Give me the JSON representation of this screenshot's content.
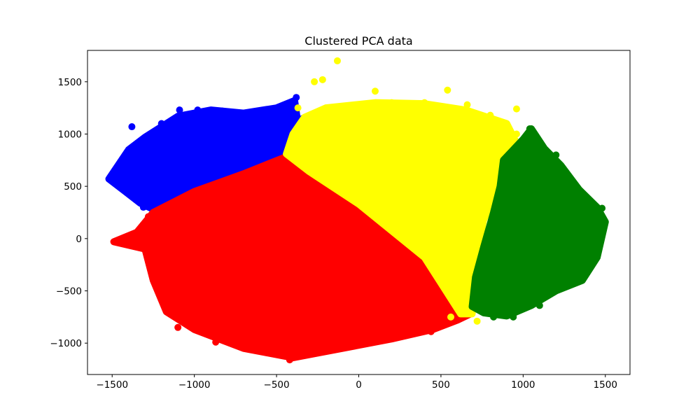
{
  "chart_data": {
    "type": "scatter",
    "title": "Clustered PCA data",
    "xlabel": "",
    "ylabel": "",
    "xlim": [
      -1650,
      1650
    ],
    "ylim": [
      -1300,
      1800
    ],
    "x_ticks": [
      -1500,
      -1000,
      -500,
      0,
      500,
      1000,
      1500
    ],
    "y_ticks": [
      -1000,
      -500,
      0,
      500,
      1000,
      1500
    ],
    "x_tick_labels": [
      "−1500",
      "−1000",
      "−500",
      "0",
      "500",
      "1000",
      "1500"
    ],
    "y_tick_labels": [
      "−1000",
      "−500",
      "0",
      "500",
      "1000",
      "1500"
    ],
    "grid": false,
    "legend": "none",
    "series": [
      {
        "color": "#0000ff",
        "points": [
          [
            -1510,
            570
          ],
          [
            -1410,
            600
          ],
          [
            -1380,
            1070
          ],
          [
            -1350,
            590
          ],
          [
            -1330,
            530
          ],
          [
            -1310,
            300
          ],
          [
            -1270,
            780
          ],
          [
            -1230,
            850
          ],
          [
            -1200,
            1100
          ],
          [
            -1150,
            420
          ],
          [
            -1120,
            700
          ],
          [
            -1090,
            1230
          ],
          [
            -1040,
            650
          ],
          [
            -980,
            1230
          ],
          [
            -930,
            900
          ],
          [
            -880,
            1150
          ],
          [
            -830,
            1220
          ],
          [
            -760,
            700
          ],
          [
            -720,
            1100
          ],
          [
            -680,
            1060
          ],
          [
            -620,
            1200
          ],
          [
            -580,
            900
          ],
          [
            -520,
            1120
          ],
          [
            -470,
            1000
          ],
          [
            -420,
            1060
          ],
          [
            -380,
            1350
          ],
          [
            -340,
            1150
          ],
          [
            -300,
            930
          ]
        ],
        "region": [
          [
            -1520,
            570
          ],
          [
            -1420,
            450
          ],
          [
            -1330,
            340
          ],
          [
            -1250,
            280
          ],
          [
            -1100,
            390
          ],
          [
            -800,
            540
          ],
          [
            -500,
            720
          ],
          [
            -430,
            810
          ],
          [
            -370,
            1100
          ],
          [
            -390,
            1320
          ],
          [
            -500,
            1250
          ],
          [
            -700,
            1200
          ],
          [
            -900,
            1230
          ],
          [
            -1100,
            1170
          ],
          [
            -1300,
            970
          ],
          [
            -1400,
            850
          ]
        ]
      },
      {
        "color": "#ff0000",
        "points": [
          [
            -1480,
            -30
          ],
          [
            -1360,
            50
          ],
          [
            -1320,
            100
          ],
          [
            -1280,
            210
          ],
          [
            -1200,
            -250
          ],
          [
            -1180,
            -640
          ],
          [
            -1100,
            -850
          ],
          [
            -980,
            -700
          ],
          [
            -870,
            -990
          ],
          [
            -760,
            -940
          ],
          [
            -620,
            -1040
          ],
          [
            -530,
            -1050
          ],
          [
            -420,
            -1160
          ],
          [
            -320,
            -1100
          ],
          [
            -210,
            -1060
          ],
          [
            -100,
            -1020
          ],
          [
            50,
            -980
          ],
          [
            180,
            -960
          ],
          [
            300,
            -900
          ],
          [
            380,
            -850
          ],
          [
            440,
            -890
          ],
          [
            520,
            -820
          ],
          [
            560,
            -790
          ],
          [
            600,
            -760
          ],
          [
            -1230,
            -380
          ],
          [
            -1250,
            120
          ],
          [
            -1160,
            180
          ]
        ],
        "region": [
          [
            -1490,
            -30
          ],
          [
            -1350,
            60
          ],
          [
            -1250,
            250
          ],
          [
            -1000,
            450
          ],
          [
            -700,
            620
          ],
          [
            -430,
            790
          ],
          [
            -300,
            640
          ],
          [
            0,
            340
          ],
          [
            400,
            -170
          ],
          [
            600,
            -470
          ],
          [
            680,
            -720
          ],
          [
            600,
            -780
          ],
          [
            450,
            -870
          ],
          [
            200,
            -960
          ],
          [
            -100,
            -1050
          ],
          [
            -400,
            -1140
          ],
          [
            -700,
            -1050
          ],
          [
            -1000,
            -870
          ],
          [
            -1170,
            -700
          ],
          [
            -1250,
            -400
          ],
          [
            -1300,
            -100
          ]
        ]
      },
      {
        "color": "#ffff00",
        "points": [
          [
            -130,
            1700
          ],
          [
            -270,
            1500
          ],
          [
            -220,
            1520
          ],
          [
            -370,
            1250
          ],
          [
            100,
            1410
          ],
          [
            200,
            1300
          ],
          [
            400,
            1300
          ],
          [
            540,
            1420
          ],
          [
            660,
            1280
          ],
          [
            800,
            1180
          ],
          [
            960,
            1240
          ],
          [
            960,
            1000
          ],
          [
            870,
            900
          ],
          [
            920,
            920
          ],
          [
            860,
            700
          ],
          [
            760,
            300
          ],
          [
            720,
            -100
          ],
          [
            700,
            -400
          ],
          [
            690,
            -650
          ],
          [
            720,
            -790
          ],
          [
            620,
            -700
          ],
          [
            560,
            -750
          ]
        ],
        "region": [
          [
            -440,
            810
          ],
          [
            -400,
            1000
          ],
          [
            -330,
            1160
          ],
          [
            -200,
            1250
          ],
          [
            100,
            1300
          ],
          [
            400,
            1290
          ],
          [
            650,
            1230
          ],
          [
            900,
            1100
          ],
          [
            980,
            850
          ],
          [
            920,
            750
          ],
          [
            840,
            450
          ],
          [
            760,
            180
          ],
          [
            720,
            -120
          ],
          [
            700,
            -420
          ],
          [
            690,
            -720
          ],
          [
            620,
            -720
          ],
          [
            400,
            -180
          ],
          [
            0,
            330
          ],
          [
            -300,
            640
          ]
        ]
      },
      {
        "color": "#008000",
        "points": [
          [
            1040,
            1050
          ],
          [
            1000,
            930
          ],
          [
            1110,
            870
          ],
          [
            1200,
            800
          ],
          [
            1260,
            570
          ],
          [
            1340,
            450
          ],
          [
            1490,
            170
          ],
          [
            1480,
            290
          ],
          [
            1400,
            0
          ],
          [
            1420,
            -200
          ],
          [
            1360,
            -370
          ],
          [
            1300,
            -380
          ],
          [
            1230,
            -450
          ],
          [
            1100,
            -640
          ],
          [
            1000,
            -650
          ],
          [
            940,
            -750
          ],
          [
            820,
            -750
          ],
          [
            760,
            -640
          ],
          [
            1050,
            -200
          ],
          [
            1150,
            0
          ],
          [
            1250,
            300
          ]
        ],
        "region": [
          [
            880,
            750
          ],
          [
            1000,
            950
          ],
          [
            1050,
            1050
          ],
          [
            1130,
            860
          ],
          [
            1230,
            700
          ],
          [
            1340,
            470
          ],
          [
            1450,
            300
          ],
          [
            1500,
            160
          ],
          [
            1450,
            -180
          ],
          [
            1360,
            -400
          ],
          [
            1200,
            -500
          ],
          [
            1050,
            -640
          ],
          [
            900,
            -740
          ],
          [
            760,
            -710
          ],
          [
            690,
            -650
          ],
          [
            710,
            -370
          ],
          [
            760,
            -80
          ],
          [
            820,
            250
          ],
          [
            860,
            500
          ]
        ]
      }
    ]
  }
}
